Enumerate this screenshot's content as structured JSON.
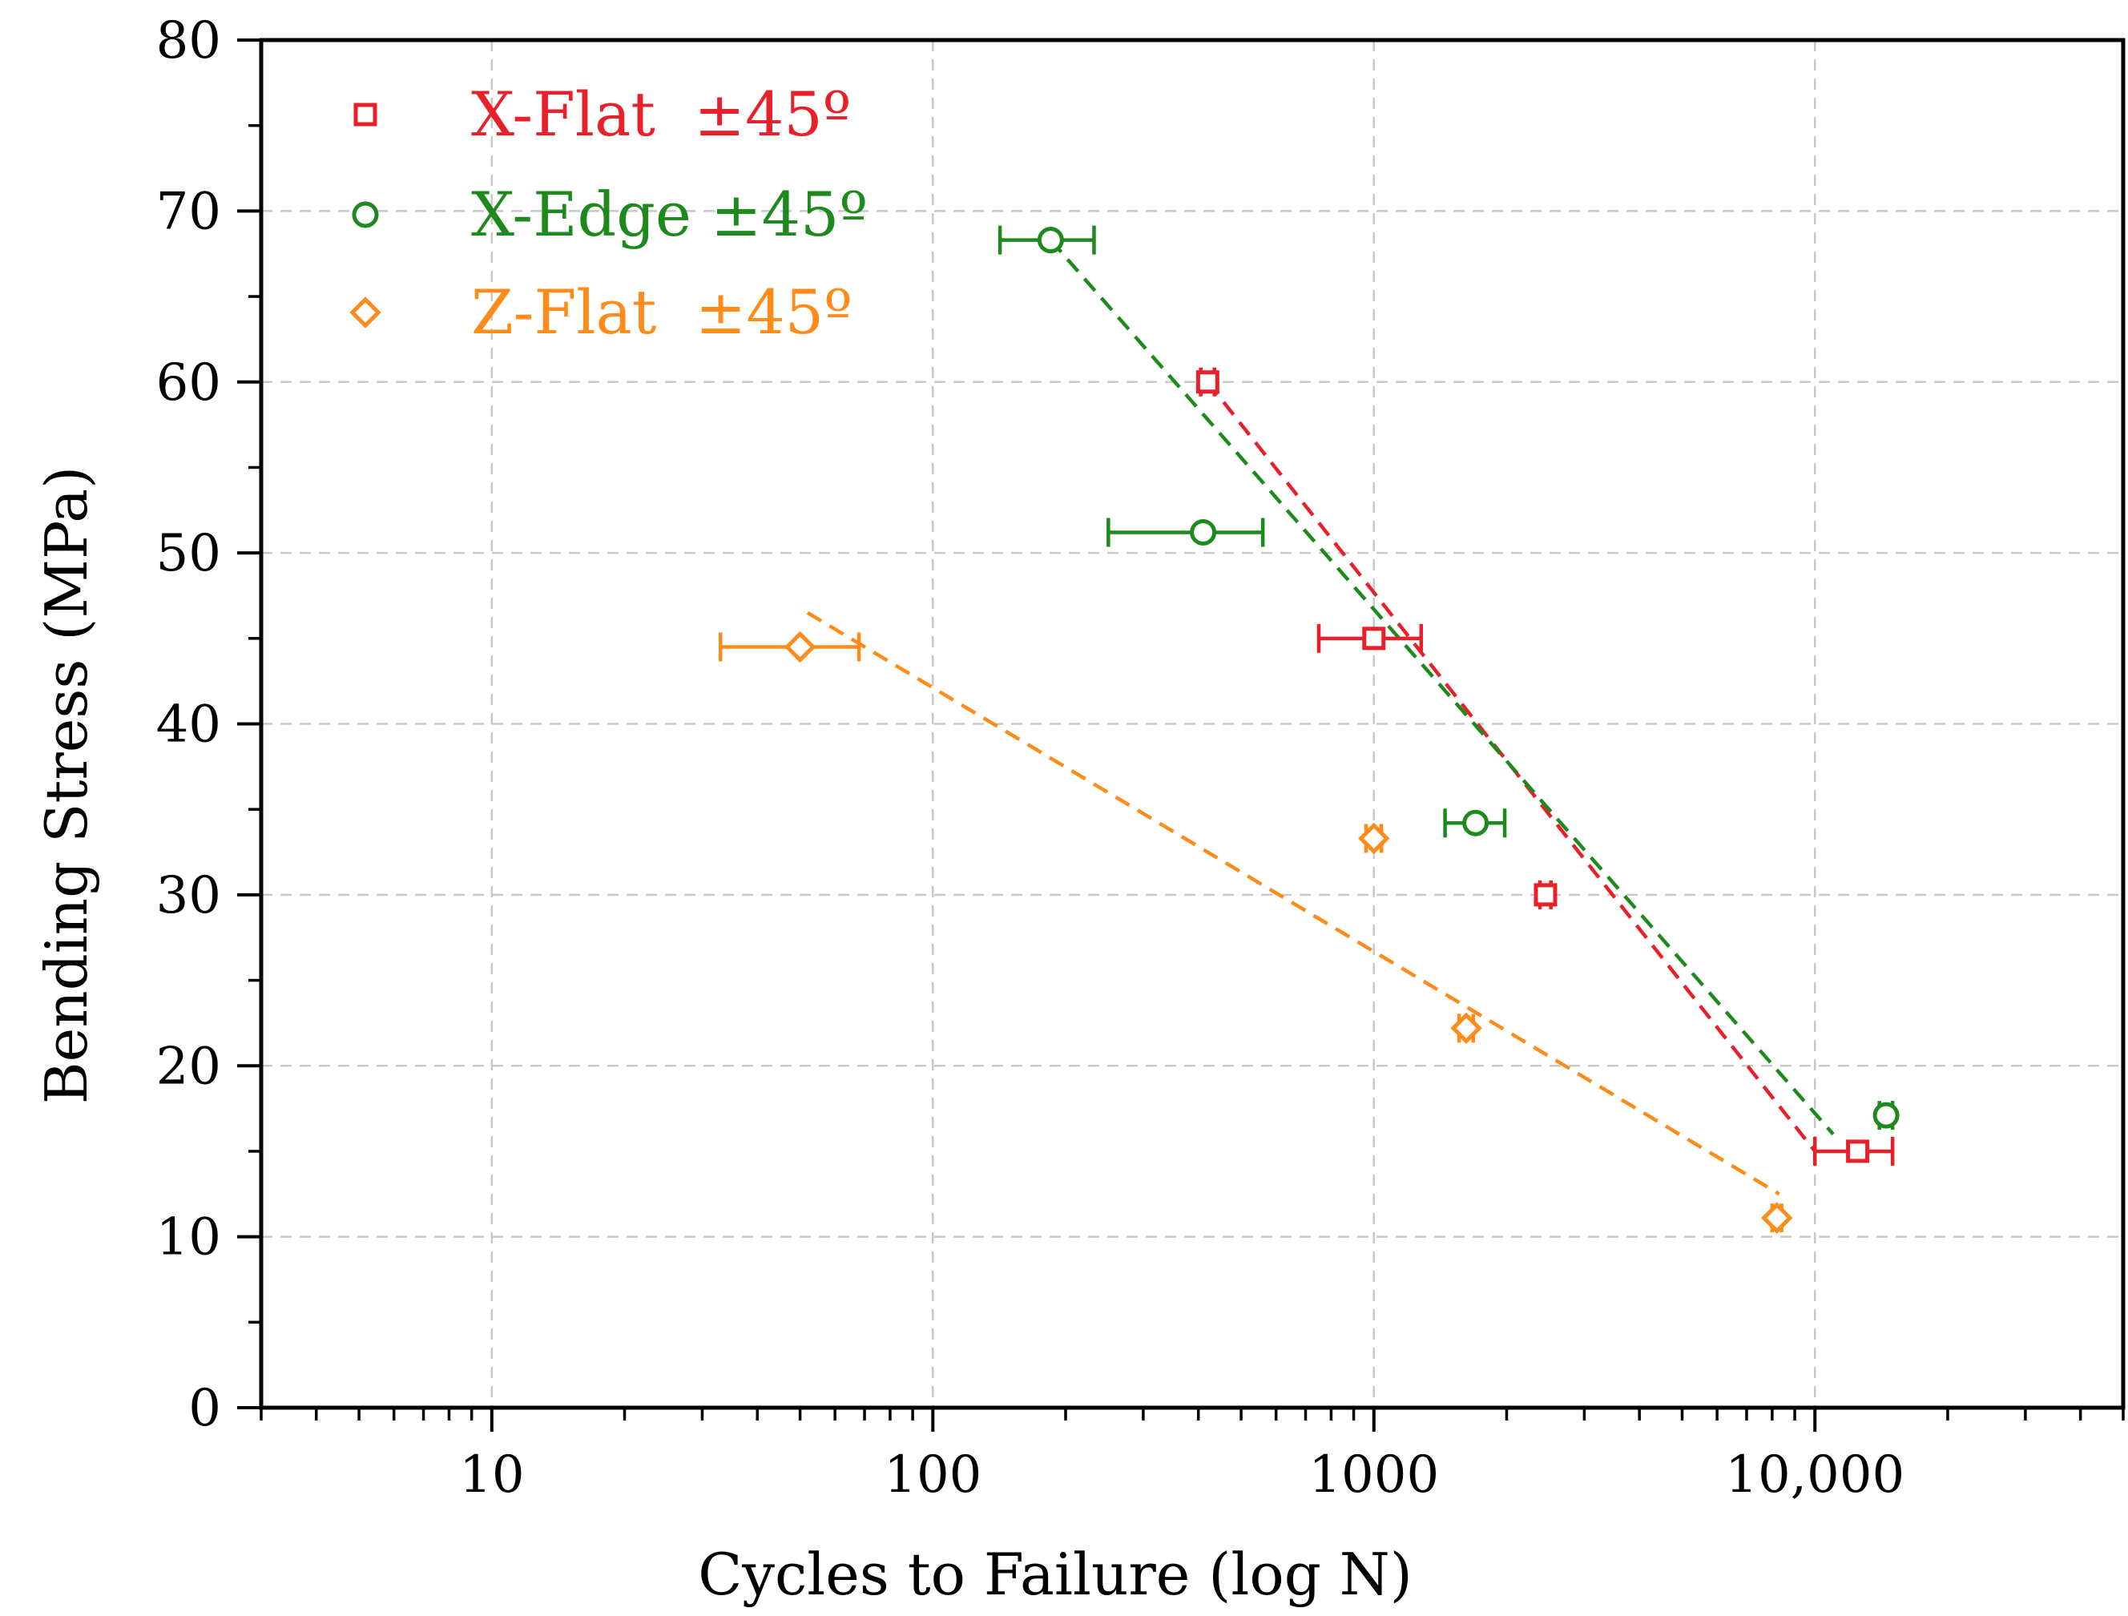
{
  "chart_data": {
    "type": "scatter",
    "title": "",
    "xlabel": "Cycles to Failure (log N)",
    "ylabel": "Bending Stress (MPa)",
    "xscale": "log",
    "xlim": [
      3,
      50000
    ],
    "ylim": [
      0,
      80
    ],
    "grid": true,
    "legend_position": "top-left",
    "x_ticks": [
      {
        "value": 10,
        "label": "10"
      },
      {
        "value": 100,
        "label": "100"
      },
      {
        "value": 1000,
        "label": "1000"
      },
      {
        "value": 10000,
        "label": "10,000"
      }
    ],
    "y_ticks": [
      {
        "value": 0,
        "label": "0"
      },
      {
        "value": 10,
        "label": "10"
      },
      {
        "value": 20,
        "label": "20"
      },
      {
        "value": 30,
        "label": "30"
      },
      {
        "value": 40,
        "label": "40"
      },
      {
        "value": 50,
        "label": "50"
      },
      {
        "value": 60,
        "label": "60"
      },
      {
        "value": 70,
        "label": "70"
      },
      {
        "value": 80,
        "label": "80"
      }
    ],
    "series": [
      {
        "name": "X-Flat  ±45º",
        "marker": "square",
        "color": "#e8202a",
        "points": [
          {
            "x": 420,
            "y": 60,
            "xerr_low": 405,
            "xerr_high": 435
          },
          {
            "x": 1000,
            "y": 45,
            "xerr_low": 750,
            "xerr_high": 1280
          },
          {
            "x": 2450,
            "y": 30,
            "xerr_low": 2380,
            "xerr_high": 2520
          },
          {
            "x": 12500,
            "y": 15,
            "xerr_low": 10000,
            "xerr_high": 15000
          }
        ],
        "trendline": {
          "x": [
            420,
            10000
          ],
          "y": [
            60,
            15
          ]
        }
      },
      {
        "name": "X-Edge ±45º",
        "marker": "circle",
        "color": "#1e8a1e",
        "points": [
          {
            "x": 185,
            "y": 68.3,
            "xerr_low": 142,
            "xerr_high": 232
          },
          {
            "x": 410,
            "y": 51.2,
            "xerr_low": 250,
            "xerr_high": 560
          },
          {
            "x": 1700,
            "y": 34.2,
            "xerr_low": 1450,
            "xerr_high": 1980
          },
          {
            "x": 14500,
            "y": 17.1,
            "xerr_low": 14000,
            "xerr_high": 15000
          }
        ],
        "trendline": {
          "x": [
            185,
            11000
          ],
          "y": [
            68.3,
            16
          ]
        }
      },
      {
        "name": "Z-Flat  ±45º",
        "marker": "diamond",
        "color": "#ff8c1a",
        "points": [
          {
            "x": 50,
            "y": 44.5,
            "xerr_low": 33,
            "xerr_high": 68
          },
          {
            "x": 1000,
            "y": 33.3,
            "xerr_low": 960,
            "xerr_high": 1040
          },
          {
            "x": 1620,
            "y": 22.2,
            "xerr_low": 1560,
            "xerr_high": 1680
          },
          {
            "x": 8200,
            "y": 11.1,
            "xerr_low": 8000,
            "xerr_high": 8400
          }
        ],
        "trendline": {
          "x": [
            52,
            8300
          ],
          "y": [
            46.5,
            12.5
          ]
        }
      }
    ]
  }
}
